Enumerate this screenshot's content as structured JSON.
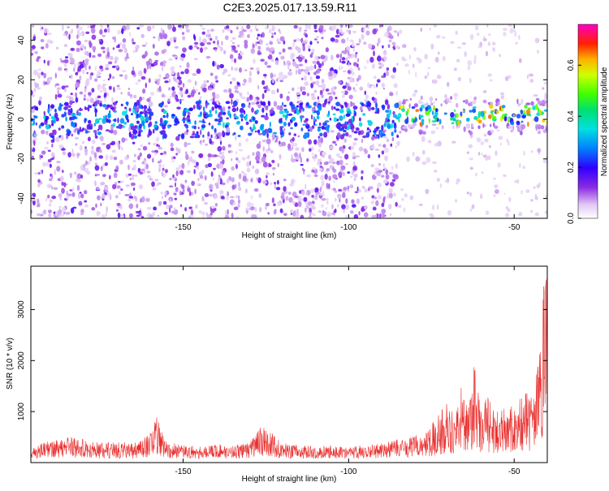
{
  "title": "C2E3.2025.017.13.59.R11",
  "chart_data": [
    {
      "type": "heatmap",
      "xlabel": "Height of straight line (km)",
      "ylabel": "Frequency (Hz)",
      "xlim": [
        -196,
        -40
      ],
      "ylim": [
        -50,
        48
      ],
      "xticks": [
        -150,
        -100,
        -50
      ],
      "yticks": [
        -40,
        -20,
        0,
        20,
        40
      ],
      "colorbar": {
        "label": "Normalized spectral amplitude",
        "range": [
          0,
          0.76
        ],
        "ticks": [
          "0.0",
          "0.2",
          "0.4",
          "0.6"
        ],
        "tick_values": [
          0,
          0.2,
          0.4,
          0.6
        ]
      },
      "grid": false,
      "description_of_data": [
        {
          "x_range": [
            -196,
            -85
          ],
          "band_center_hz": 0,
          "band_amplitude": 0.3,
          "noise_amplitude": 0.08
        },
        {
          "x_range": [
            -85,
            -40
          ],
          "band_center_hz": 2,
          "band_amplitude": 0.55,
          "noise_amplitude": 0.03
        }
      ]
    },
    {
      "type": "line",
      "xlabel": "Height of straight line (km)",
      "ylabel": "SNR (10 * v/v)",
      "xlim": [
        -196,
        -40
      ],
      "ylim": [
        0,
        3850
      ],
      "xticks": [
        -150,
        -100,
        -50
      ],
      "yticks": [
        1000,
        2000,
        3000
      ],
      "color": "#e8302f",
      "grid": false,
      "series": [
        {
          "x": [
            -196,
            -190,
            -185,
            -180,
            -175,
            -170,
            -165,
            -160,
            -158,
            -155,
            -150,
            -145,
            -140,
            -135,
            -130,
            -126,
            -120,
            -115,
            -110,
            -105,
            -100,
            -95,
            -90,
            -85,
            -80,
            -76,
            -74,
            -72,
            -70,
            -68,
            -66,
            -64,
            -62,
            -60,
            -58,
            -56,
            -54,
            -52,
            -50,
            -48,
            -46,
            -44,
            -42,
            -41,
            -40
          ],
          "y": [
            250,
            400,
            500,
            420,
            350,
            380,
            330,
            550,
            850,
            380,
            300,
            280,
            330,
            300,
            370,
            700,
            350,
            300,
            280,
            300,
            260,
            320,
            350,
            420,
            480,
            650,
            800,
            1000,
            1200,
            900,
            1500,
            1100,
            1900,
            1000,
            1300,
            950,
            1200,
            1050,
            1100,
            1250,
            1400,
            1250,
            2400,
            3500,
            3800
          ]
        }
      ]
    }
  ]
}
